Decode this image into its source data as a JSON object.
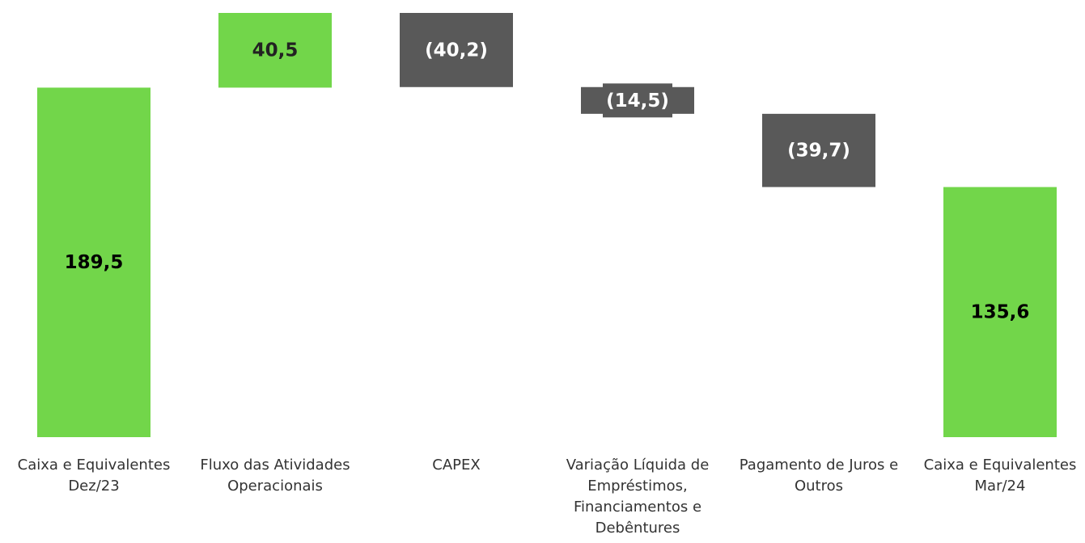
{
  "chart_data": {
    "type": "waterfall",
    "categories": [
      "Caixa e Equivalentes Dez/23",
      "Fluxo das Atividades Operacionais",
      "CAPEX",
      "Variação Líquida de Empréstimos, Financiamentos e Debêntures",
      "Pagamento de Juros e Outros",
      "Caixa e Equivalentes Mar/24"
    ],
    "values": [
      189.5,
      40.5,
      -40.2,
      -14.5,
      -39.7,
      135.6
    ],
    "value_labels": [
      "189,5",
      "40,5",
      "(40,2)",
      "(14,5)",
      "(39,7)",
      "135,6"
    ],
    "measure": [
      "absolute",
      "relative",
      "relative",
      "relative",
      "relative",
      "absolute"
    ],
    "total_color": "#72d64a",
    "increase_color": "#72d64a",
    "decrease_color": "#595959"
  }
}
